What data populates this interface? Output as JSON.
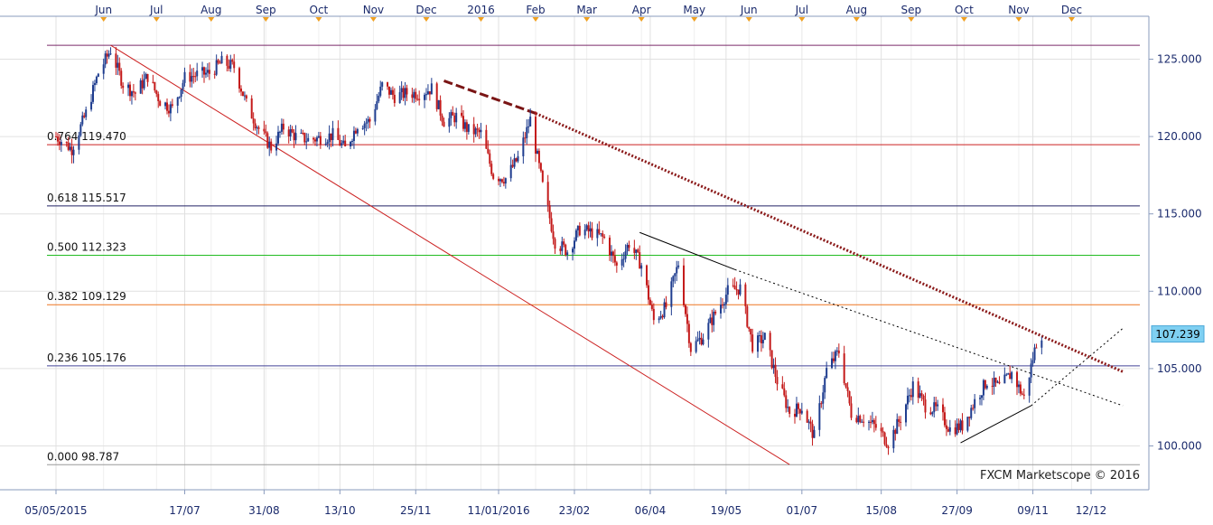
{
  "watermark": "FXCM Marketscope © 2016",
  "chart_data": {
    "type": "candlestick",
    "grid": true,
    "y_axis": {
      "position": "right",
      "ylim": [
        97.0,
        127.5
      ],
      "ticks": [
        100.0,
        105.0,
        110.0,
        115.0,
        120.0,
        125.0
      ]
    },
    "last_price": 107.239,
    "month_labels": [
      {
        "label": "Jun",
        "date": "2015-06-01"
      },
      {
        "label": "Jul",
        "date": "2015-07-01"
      },
      {
        "label": "Aug",
        "date": "2015-08-01"
      },
      {
        "label": "Sep",
        "date": "2015-09-01"
      },
      {
        "label": "Oct",
        "date": "2015-10-01"
      },
      {
        "label": "Nov",
        "date": "2015-11-01"
      },
      {
        "label": "Dec",
        "date": "2015-12-01"
      },
      {
        "label": "2016",
        "date": "2016-01-01"
      },
      {
        "label": "Feb",
        "date": "2016-02-01"
      },
      {
        "label": "Mar",
        "date": "2016-03-01"
      },
      {
        "label": "Apr",
        "date": "2016-04-01"
      },
      {
        "label": "May",
        "date": "2016-05-01"
      },
      {
        "label": "Jun",
        "date": "2016-06-01"
      },
      {
        "label": "Jul",
        "date": "2016-07-01"
      },
      {
        "label": "Aug",
        "date": "2016-08-01"
      },
      {
        "label": "Sep",
        "date": "2016-09-01"
      },
      {
        "label": "Oct",
        "date": "2016-10-01"
      },
      {
        "label": "Nov",
        "date": "2016-11-01"
      },
      {
        "label": "Dec",
        "date": "2016-12-01"
      }
    ],
    "date_labels": [
      {
        "label": "05/05/2015",
        "date": "2015-05-05"
      },
      {
        "label": "17/07",
        "date": "2015-07-17"
      },
      {
        "label": "31/08",
        "date": "2015-08-31"
      },
      {
        "label": "13/10",
        "date": "2015-10-13"
      },
      {
        "label": "25/11",
        "date": "2015-11-25"
      },
      {
        "label": "11/01/2016",
        "date": "2016-01-11"
      },
      {
        "label": "23/02",
        "date": "2016-02-23"
      },
      {
        "label": "06/04",
        "date": "2016-04-06"
      },
      {
        "label": "19/05",
        "date": "2016-05-19"
      },
      {
        "label": "01/07",
        "date": "2016-07-01"
      },
      {
        "label": "15/08",
        "date": "2016-08-15"
      },
      {
        "label": "27/09",
        "date": "2016-09-27"
      },
      {
        "label": "09/11",
        "date": "2016-11-09"
      },
      {
        "label": "12/12",
        "date": "2016-12-12"
      }
    ],
    "fib_levels": [
      {
        "ratio": "0.764",
        "value": 119.47,
        "label": "0.764 119.470",
        "color": "#cc2222"
      },
      {
        "ratio": "0.618",
        "value": 115.517,
        "label": "0.618 115.517",
        "color": "#222266"
      },
      {
        "ratio": "0.500",
        "value": 112.323,
        "label": "0.500 112.323",
        "color": "#22bb22"
      },
      {
        "ratio": "0.382",
        "value": 109.129,
        "label": "0.382 109.129",
        "color": "#ee7722"
      },
      {
        "ratio": "0.236",
        "value": 105.176,
        "label": "0.236 105.176",
        "color": "#444499"
      },
      {
        "ratio": "0.000",
        "value": 98.787,
        "label": "0.000 98.787",
        "color": "#999999"
      }
    ],
    "fib_top": {
      "value": 125.9,
      "color": "#7a2a6a"
    },
    "trendlines": [
      {
        "name": "fib-anchor-line",
        "from": [
          "2015-06-05",
          125.9
        ],
        "to": [
          "2016-06-24",
          98.8
        ],
        "color": "#cc2222",
        "style": "solid",
        "width": 1
      },
      {
        "name": "dashed-resistance",
        "from": [
          "2015-12-11",
          123.6
        ],
        "to": [
          "2016-02-01",
          121.5
        ],
        "color": "#7a1515",
        "style": "dash",
        "width": 3
      },
      {
        "name": "dotted-resistance",
        "from": [
          "2016-02-01",
          121.5
        ],
        "to": [
          "2016-12-30",
          104.8
        ],
        "color": "#8b1a1a",
        "style": "dot",
        "width": 3
      },
      {
        "name": "black-resistance",
        "from": [
          "2016-03-31",
          113.8
        ],
        "to": [
          "2016-05-24",
          111.4
        ],
        "color": "#000000",
        "style": "solid",
        "width": 1
      },
      {
        "name": "black-resistance-ext",
        "from": [
          "2016-05-24",
          111.4
        ],
        "to": [
          "2016-12-30",
          102.6
        ],
        "color": "#000000",
        "style": "dot",
        "width": 1
      },
      {
        "name": "support-line",
        "from": [
          "2016-09-29",
          100.2
        ],
        "to": [
          "2016-11-08",
          102.6
        ],
        "color": "#000000",
        "style": "solid",
        "width": 1
      },
      {
        "name": "support-line-ext",
        "from": [
          "2016-11-08",
          102.6
        ],
        "to": [
          "2016-12-30",
          107.6
        ],
        "color": "#000000",
        "style": "dot",
        "width": 1
      }
    ],
    "price_path": [
      [
        "2015-05-05",
        120.0
      ],
      [
        "2015-05-14",
        119.2
      ],
      [
        "2015-05-22",
        121.5
      ],
      [
        "2015-05-29",
        124.1
      ],
      [
        "2015-06-05",
        125.6
      ],
      [
        "2015-06-12",
        123.4
      ],
      [
        "2015-06-19",
        122.8
      ],
      [
        "2015-06-26",
        123.9
      ],
      [
        "2015-07-03",
        122.3
      ],
      [
        "2015-07-10",
        121.8
      ],
      [
        "2015-07-17",
        123.8
      ],
      [
        "2015-07-24",
        124.0
      ],
      [
        "2015-07-31",
        124.1
      ],
      [
        "2015-08-07",
        124.8
      ],
      [
        "2015-08-14",
        124.5
      ],
      [
        "2015-08-21",
        122.1
      ],
      [
        "2015-08-28",
        120.5
      ],
      [
        "2015-09-04",
        119.3
      ],
      [
        "2015-09-11",
        120.6
      ],
      [
        "2015-09-18",
        120.0
      ],
      [
        "2015-09-25",
        119.8
      ],
      [
        "2015-10-02",
        119.9
      ],
      [
        "2015-10-09",
        120.1
      ],
      [
        "2015-10-16",
        119.2
      ],
      [
        "2015-10-23",
        120.8
      ],
      [
        "2015-10-30",
        121.0
      ],
      [
        "2015-11-06",
        123.3
      ],
      [
        "2015-11-13",
        122.6
      ],
      [
        "2015-11-20",
        122.8
      ],
      [
        "2015-11-27",
        122.8
      ],
      [
        "2015-12-04",
        123.1
      ],
      [
        "2015-12-11",
        121.0
      ],
      [
        "2015-12-18",
        121.3
      ],
      [
        "2015-12-25",
        120.4
      ],
      [
        "2016-01-01",
        120.2
      ],
      [
        "2016-01-08",
        117.5
      ],
      [
        "2016-01-15",
        117.3
      ],
      [
        "2016-01-22",
        118.6
      ],
      [
        "2016-01-29",
        121.1
      ],
      [
        "2016-02-05",
        116.8
      ],
      [
        "2016-02-12",
        113.2
      ],
      [
        "2016-02-19",
        112.6
      ],
      [
        "2016-02-26",
        114.0
      ],
      [
        "2016-03-04",
        113.8
      ],
      [
        "2016-03-11",
        113.4
      ],
      [
        "2016-03-18",
        111.6
      ],
      [
        "2016-03-25",
        113.1
      ],
      [
        "2016-04-01",
        111.7
      ],
      [
        "2016-04-08",
        108.1
      ],
      [
        "2016-04-15",
        109.0
      ],
      [
        "2016-04-22",
        111.8
      ],
      [
        "2016-04-29",
        106.3
      ],
      [
        "2016-05-06",
        107.1
      ],
      [
        "2016-05-13",
        108.6
      ],
      [
        "2016-05-20",
        110.0
      ],
      [
        "2016-05-27",
        110.2
      ],
      [
        "2016-06-03",
        106.5
      ],
      [
        "2016-06-10",
        107.0
      ],
      [
        "2016-06-17",
        104.2
      ],
      [
        "2016-06-24",
        102.2
      ],
      [
        "2016-07-01",
        102.5
      ],
      [
        "2016-07-08",
        100.6
      ],
      [
        "2016-07-15",
        104.9
      ],
      [
        "2016-07-22",
        106.1
      ],
      [
        "2016-07-29",
        102.1
      ],
      [
        "2016-08-05",
        101.8
      ],
      [
        "2016-08-12",
        101.2
      ],
      [
        "2016-08-19",
        100.2
      ],
      [
        "2016-08-26",
        101.8
      ],
      [
        "2016-09-02",
        103.9
      ],
      [
        "2016-09-09",
        102.6
      ],
      [
        "2016-09-16",
        102.3
      ],
      [
        "2016-09-23",
        101.1
      ],
      [
        "2016-09-30",
        101.3
      ],
      [
        "2016-10-07",
        102.9
      ],
      [
        "2016-10-14",
        104.2
      ],
      [
        "2016-10-21",
        103.8
      ],
      [
        "2016-10-28",
        104.7
      ],
      [
        "2016-11-04",
        103.1
      ],
      [
        "2016-11-11",
        106.7
      ],
      [
        "2016-11-14",
        107.24
      ]
    ]
  }
}
